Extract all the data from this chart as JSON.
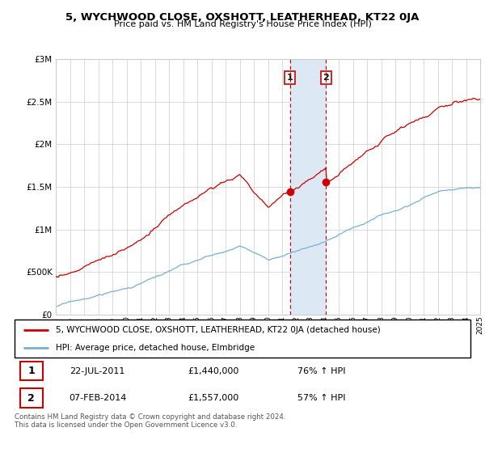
{
  "title": "5, WYCHWOOD CLOSE, OXSHOTT, LEATHERHEAD, KT22 0JA",
  "subtitle": "Price paid vs. HM Land Registry's House Price Index (HPI)",
  "legend_line1": "5, WYCHWOOD CLOSE, OXSHOTT, LEATHERHEAD, KT22 0JA (detached house)",
  "legend_line2": "HPI: Average price, detached house, Elmbridge",
  "sale1_date": "22-JUL-2011",
  "sale1_price": "£1,440,000",
  "sale1_hpi": "76% ↑ HPI",
  "sale2_date": "07-FEB-2014",
  "sale2_price": "£1,557,000",
  "sale2_hpi": "57% ↑ HPI",
  "footer": "Contains HM Land Registry data © Crown copyright and database right 2024.\nThis data is licensed under the Open Government Licence v3.0.",
  "hpi_color": "#7aafd4",
  "price_color": "#cc0000",
  "sale1_year": 2011.55,
  "sale2_year": 2014.1,
  "highlight_color": "#dce9f5",
  "vline_color": "#cc0000",
  "grid_color": "#cccccc",
  "ylim_max": 3000000,
  "ylim_min": 0,
  "xlim_min": 1995,
  "xlim_max": 2025,
  "sale1_price_val": 1440000,
  "sale2_price_val": 1557000
}
